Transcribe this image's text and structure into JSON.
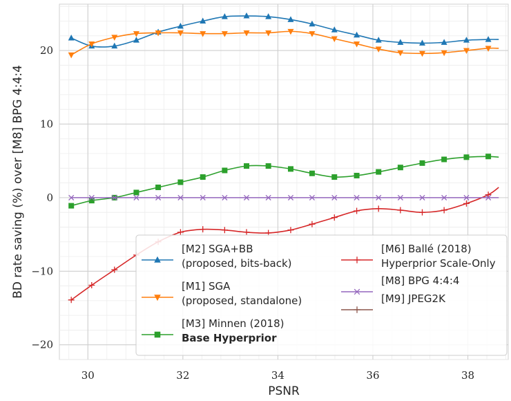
{
  "chart_data": {
    "type": "line",
    "xlabel": "PSNR",
    "ylabel": "BD rate saving (%) over [M8] BPG 4:4:4",
    "xlim": [
      29.4,
      38.85
    ],
    "ylim": [
      -22,
      26.3
    ],
    "xticks": [
      30,
      32,
      34,
      36,
      38
    ],
    "yticks": [
      -20,
      -10,
      0,
      10,
      20
    ],
    "xtick_labels": [
      "30",
      "32",
      "34",
      "36",
      "38"
    ],
    "ytick_labels": [
      "−20",
      "−10",
      "0",
      "10",
      "20"
    ],
    "grid": true,
    "legend_position": "lower-right",
    "series": [
      {
        "key": "m2",
        "name_lines": [
          "[M2] SGA+BB",
          "(proposed, bits-back)"
        ],
        "color": "#1f77b4",
        "marker": "triangle-up",
        "x": [
          29.65,
          30.08,
          30.56,
          31.02,
          31.48,
          31.95,
          32.42,
          32.88,
          33.34,
          33.8,
          34.27,
          34.72,
          35.19,
          35.66,
          36.12,
          36.58,
          37.04,
          37.5,
          37.97,
          38.43,
          38.65
        ],
        "y": [
          21.7,
          20.6,
          20.6,
          21.4,
          22.5,
          23.3,
          24.0,
          24.6,
          24.7,
          24.6,
          24.2,
          23.6,
          22.8,
          22.1,
          21.4,
          21.1,
          21.0,
          21.1,
          21.4,
          21.5,
          21.5
        ]
      },
      {
        "key": "m1",
        "name_lines": [
          "[M1] SGA",
          "(proposed, standalone)"
        ],
        "color": "#ff7f0e",
        "marker": "triangle-down",
        "x": [
          29.65,
          30.08,
          30.56,
          31.02,
          31.48,
          31.95,
          32.42,
          32.88,
          33.34,
          33.8,
          34.27,
          34.72,
          35.19,
          35.66,
          36.12,
          36.58,
          37.04,
          37.5,
          37.97,
          38.43,
          38.65
        ],
        "y": [
          19.4,
          20.9,
          21.8,
          22.3,
          22.4,
          22.4,
          22.3,
          22.3,
          22.4,
          22.4,
          22.6,
          22.3,
          21.6,
          20.9,
          20.2,
          19.7,
          19.6,
          19.7,
          20.0,
          20.3,
          20.3
        ]
      },
      {
        "key": "m3",
        "name_lines": [
          "[M3] Minnen (2018)",
          "Base Hyperprior"
        ],
        "bold_second_line": true,
        "color": "#2ca02c",
        "marker": "square",
        "x": [
          29.65,
          30.08,
          30.56,
          31.02,
          31.48,
          31.95,
          32.42,
          32.88,
          33.34,
          33.8,
          34.27,
          34.72,
          35.19,
          35.66,
          36.12,
          36.58,
          37.04,
          37.5,
          37.97,
          38.43,
          38.65
        ],
        "y": [
          -1.1,
          -0.4,
          0.0,
          0.7,
          1.4,
          2.1,
          2.8,
          3.7,
          4.3,
          4.3,
          3.9,
          3.3,
          2.8,
          3.0,
          3.5,
          4.1,
          4.7,
          5.2,
          5.5,
          5.6,
          5.5
        ]
      },
      {
        "key": "m6",
        "name_lines": [
          "[M6] Ballé (2018)",
          "Hyperprior Scale-Only"
        ],
        "color": "#d62728",
        "marker": "plus",
        "x": [
          29.65,
          30.08,
          30.56,
          31.02,
          31.48,
          31.95,
          32.42,
          32.88,
          33.34,
          33.8,
          34.27,
          34.72,
          35.19,
          35.66,
          36.12,
          36.58,
          37.04,
          37.5,
          37.97,
          38.43,
          38.65
        ],
        "y": [
          -13.9,
          -11.9,
          -9.8,
          -7.8,
          -6.0,
          -4.7,
          -4.3,
          -4.4,
          -4.7,
          -4.8,
          -4.4,
          -3.6,
          -2.7,
          -1.8,
          -1.5,
          -1.7,
          -2.0,
          -1.7,
          -0.8,
          0.4,
          1.4
        ]
      },
      {
        "key": "m8",
        "name_lines": [
          "[M8] BPG 4:4:4"
        ],
        "color": "#9467bd",
        "marker": "x",
        "x": [
          29.65,
          30.08,
          30.56,
          31.02,
          31.48,
          31.95,
          32.42,
          32.88,
          33.34,
          33.8,
          34.27,
          34.72,
          35.19,
          35.66,
          36.12,
          36.58,
          37.04,
          37.5,
          37.97,
          38.43,
          38.65
        ],
        "y": [
          0,
          0,
          0,
          0,
          0,
          0,
          0,
          0,
          0,
          0,
          0,
          0,
          0,
          0,
          0,
          0,
          0,
          0,
          0,
          0,
          0
        ]
      },
      {
        "key": "m9",
        "name_lines": [
          "[M9] JPEG2K"
        ],
        "color": "#8c564b",
        "marker": "plus",
        "x": [],
        "y": []
      }
    ]
  }
}
